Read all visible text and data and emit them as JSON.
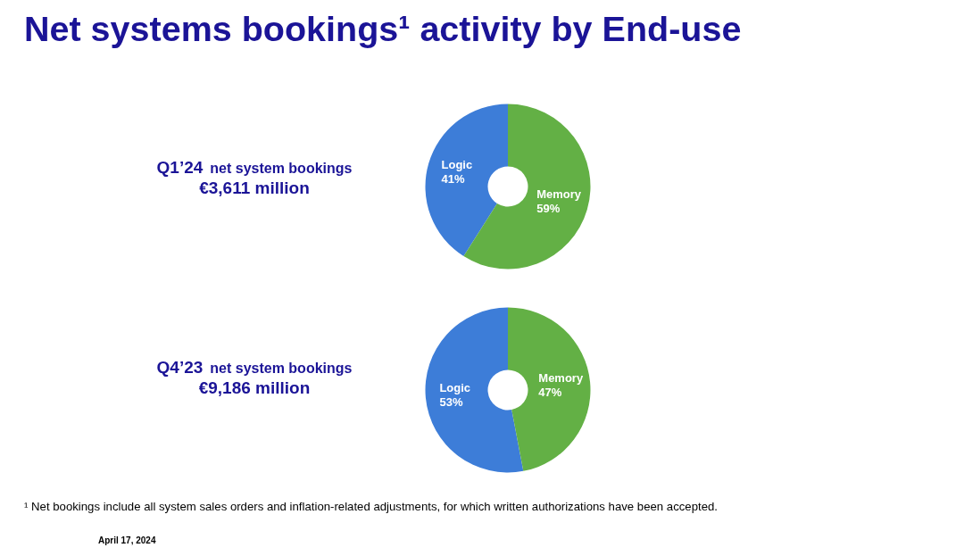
{
  "chart_data": [
    {
      "type": "donut",
      "title": "Net systems bookings¹ activity by End-use",
      "categories": [
        "Logic",
        "Memory"
      ],
      "values": [
        41,
        59
      ],
      "colors": [
        "#3d7dd8",
        "#63b045"
      ],
      "value_labels": [
        "41%",
        "59%"
      ],
      "annotations": [
        "Q1’24",
        "net system bookings",
        "€3,611 million"
      ]
    },
    {
      "type": "donut",
      "categories": [
        "Logic",
        "Memory"
      ],
      "values": [
        53,
        47
      ],
      "colors": [
        "#3d7dd8",
        "#63b045"
      ],
      "value_labels": [
        "53%",
        "47%"
      ],
      "annotations": [
        "Q4’23",
        "net system bookings",
        "€9,186 million",
        "¹ Net bookings include all system sales orders and inflation-related adjustments, for which written authorizations have been accepted.",
        "April 17, 2024"
      ]
    }
  ]
}
